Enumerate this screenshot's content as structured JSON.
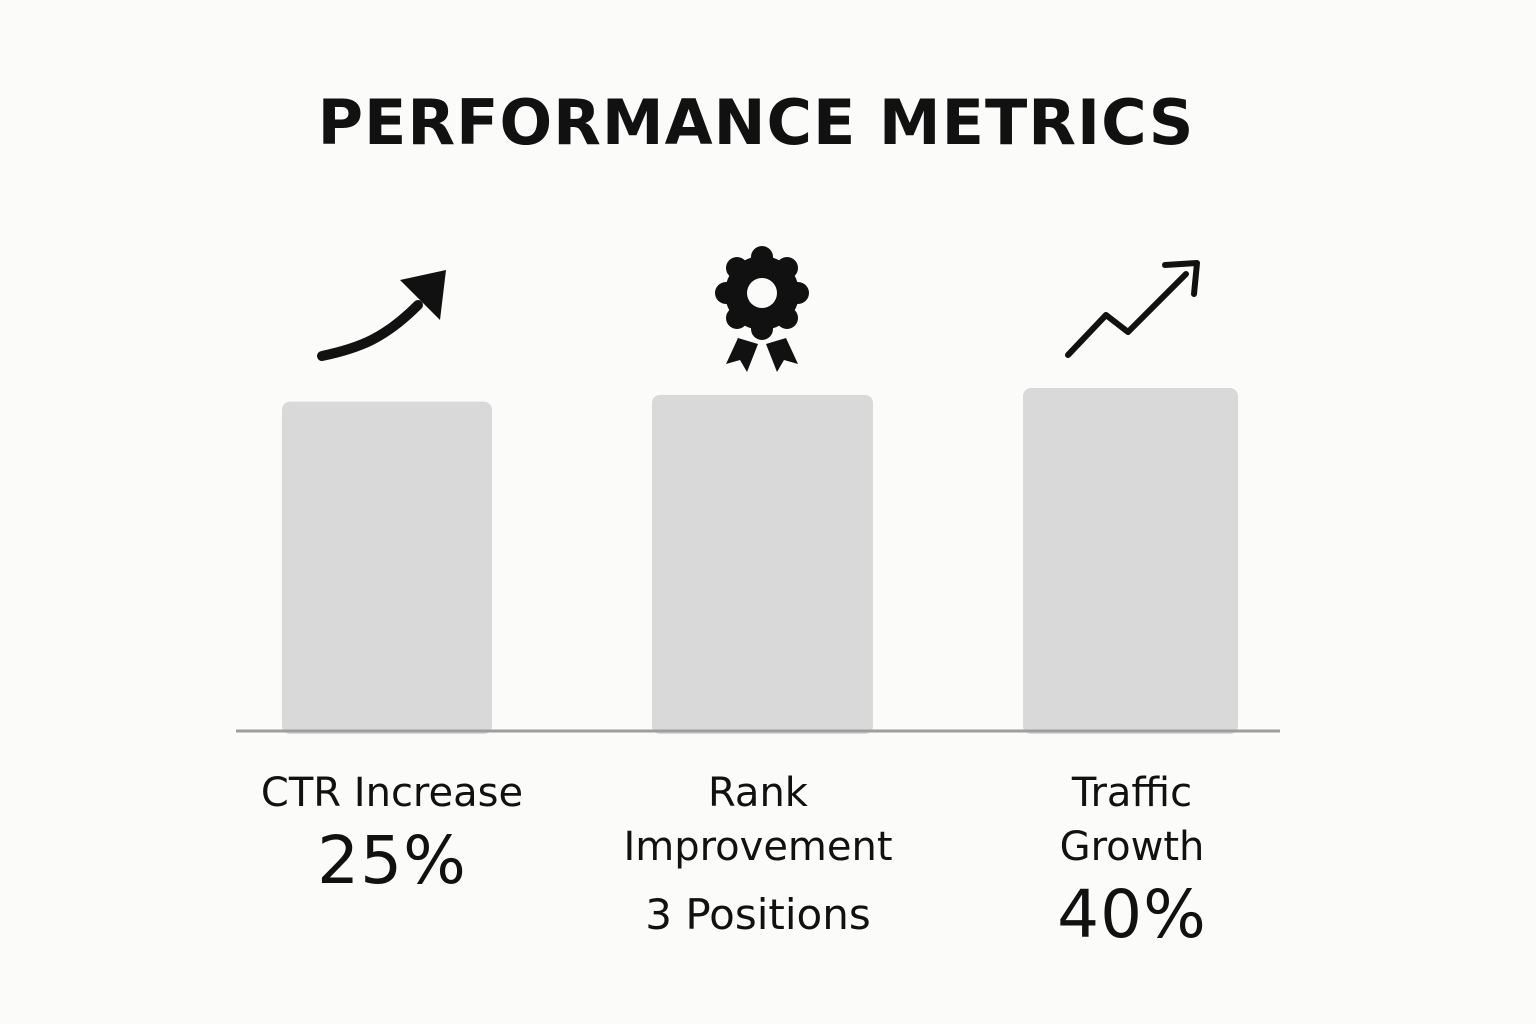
{
  "title": "PERFORMANCE METRICS",
  "chart_data": {
    "type": "bar",
    "title": "PERFORMANCE METRICS",
    "categories": [
      "CTR Increase",
      "Rank Improvement",
      "Traffic Growth"
    ],
    "value_labels": [
      "25%",
      "3 Positions",
      "40%"
    ],
    "icons": [
      "curved-arrow-up-icon",
      "award-ribbon-icon",
      "trending-up-icon"
    ],
    "relative_bar_heights": [
      0.96,
      0.98,
      1.0
    ],
    "bar_color": "#d9d9d9",
    "axis_color": "#9e9e9e",
    "xlabel": "",
    "ylabel": "",
    "grid": false,
    "legend": "none"
  },
  "colors": {
    "background": "#fbfbf9",
    "text": "#111111",
    "icon": "#111111"
  }
}
